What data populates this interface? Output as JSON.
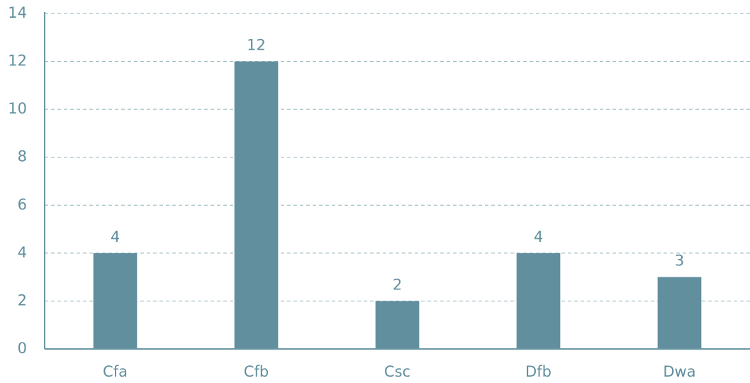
{
  "chart_data": {
    "type": "bar",
    "categories": [
      "Cfa",
      "Cfb",
      "Csc",
      "Dfb",
      "Dwa"
    ],
    "values": [
      4,
      12,
      2,
      4,
      3
    ],
    "color": "#628f9e",
    "ylim": [
      0,
      14
    ],
    "yticks": [
      0,
      2,
      4,
      6,
      8,
      10,
      12,
      14
    ],
    "grid": true
  }
}
